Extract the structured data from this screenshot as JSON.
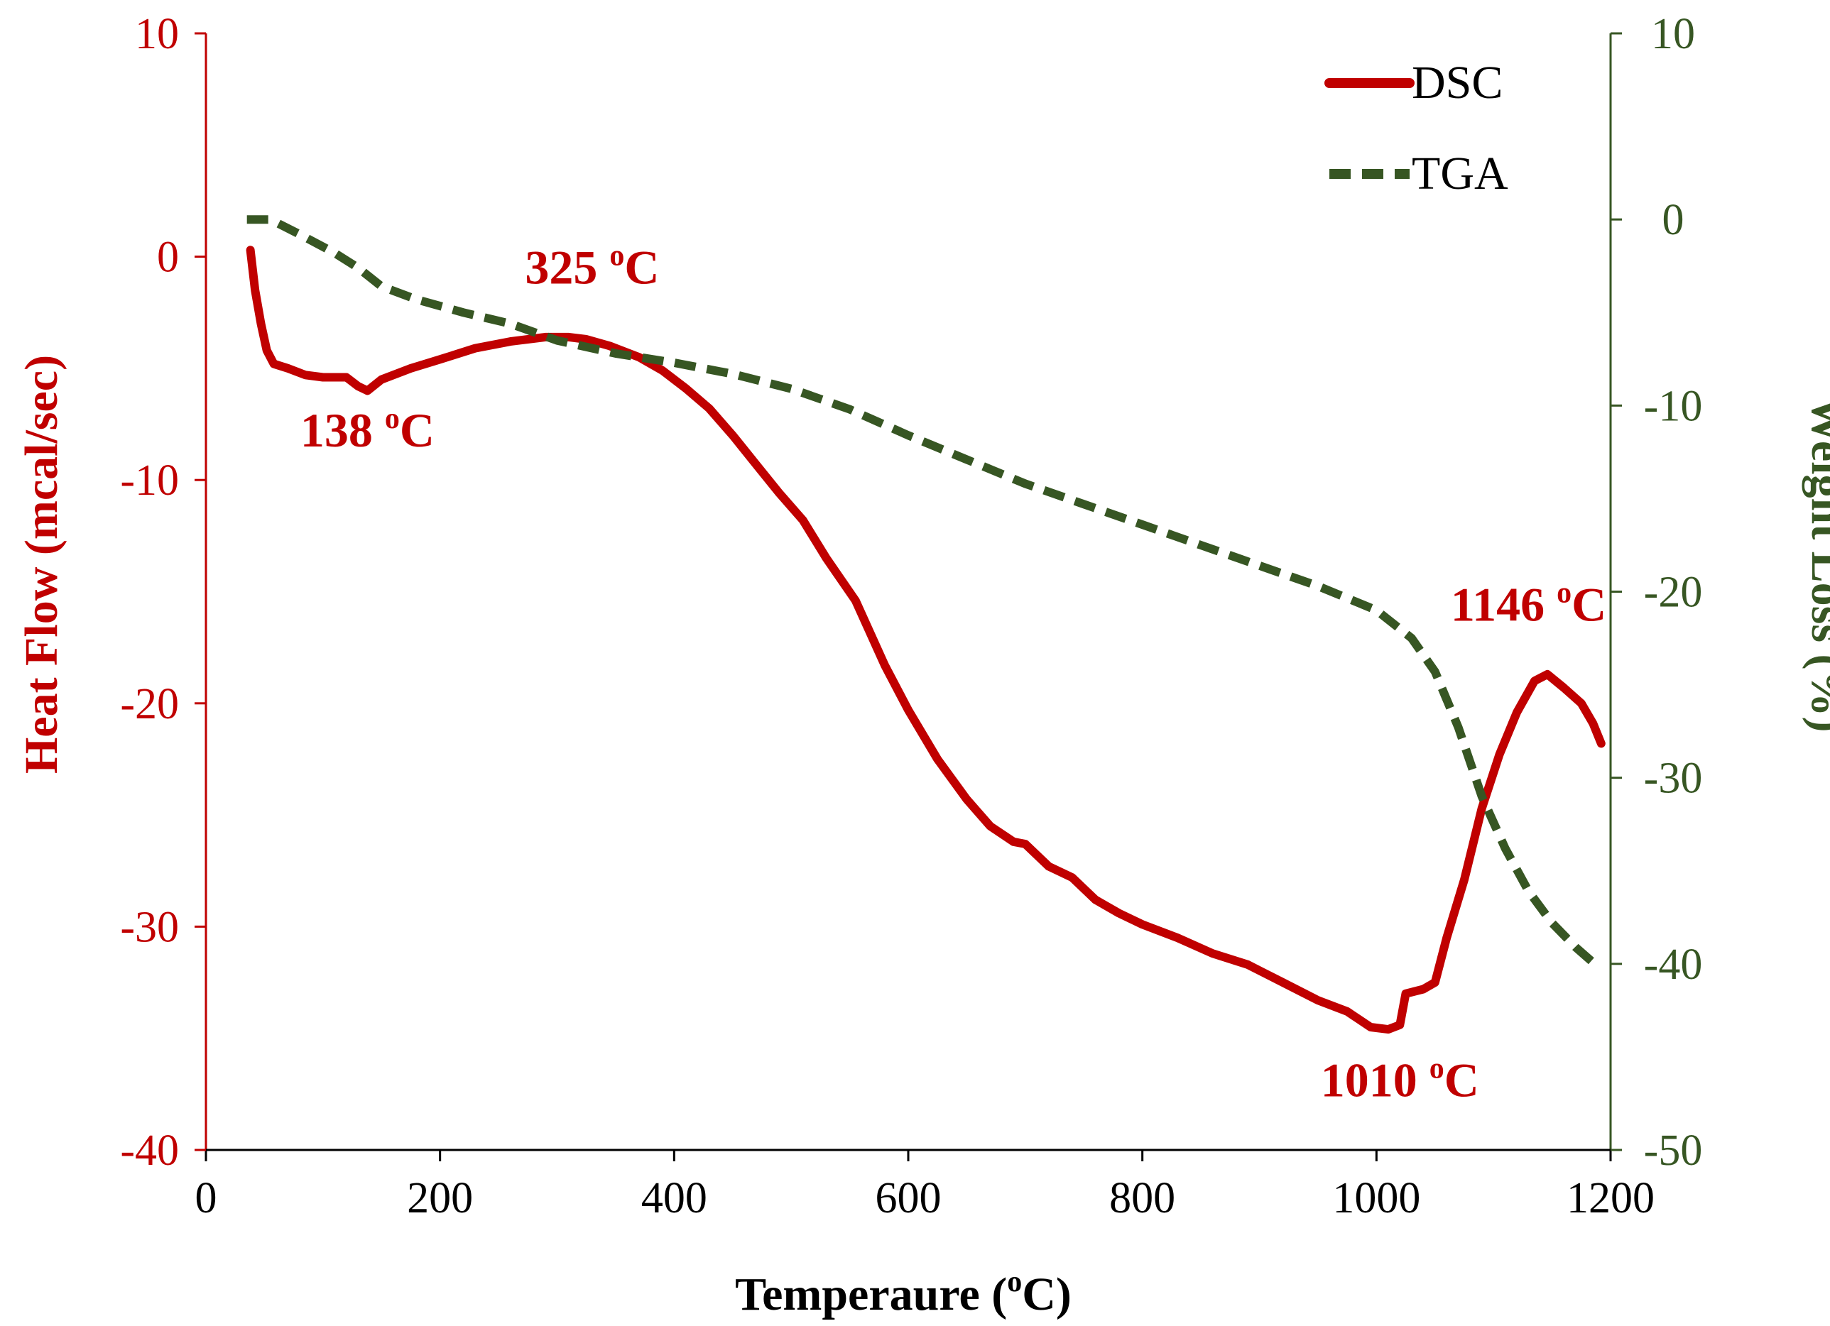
{
  "chart_data": {
    "type": "line",
    "title": "",
    "xlabel": {
      "text": "Temperaure (",
      "sup": "o",
      "tail": "C)"
    },
    "ylabel_left": "Heat Flow (mcal/sec)",
    "ylabel_right": "Weight Loss (%)",
    "xlim": [
      0,
      1200
    ],
    "ylim_left": [
      -40,
      10
    ],
    "ylim_right": [
      -50,
      10
    ],
    "x_ticks": [
      0,
      200,
      400,
      600,
      800,
      1000,
      1200
    ],
    "y_left_ticks": [
      10,
      0,
      -10,
      -20,
      -30,
      -40
    ],
    "y_right_ticks": [
      10,
      0,
      -10,
      -20,
      -30,
      -40,
      -50
    ],
    "legend_position": "top-right",
    "colors": {
      "dsc": "#c00000",
      "tga": "#375623",
      "axis": "#000000"
    },
    "series": [
      {
        "name": "DSC",
        "axis": "left",
        "style": "solid",
        "points": [
          [
            38,
            0.3
          ],
          [
            42,
            -1.5
          ],
          [
            47,
            -3.0
          ],
          [
            52,
            -4.2
          ],
          [
            58,
            -4.8
          ],
          [
            70,
            -5.0
          ],
          [
            85,
            -5.3
          ],
          [
            100,
            -5.4
          ],
          [
            120,
            -5.4
          ],
          [
            130,
            -5.8
          ],
          [
            138,
            -6.0
          ],
          [
            150,
            -5.5
          ],
          [
            175,
            -5.0
          ],
          [
            200,
            -4.6
          ],
          [
            230,
            -4.1
          ],
          [
            260,
            -3.8
          ],
          [
            290,
            -3.6
          ],
          [
            310,
            -3.6
          ],
          [
            325,
            -3.7
          ],
          [
            345,
            -4.0
          ],
          [
            370,
            -4.5
          ],
          [
            390,
            -5.1
          ],
          [
            410,
            -5.9
          ],
          [
            430,
            -6.8
          ],
          [
            450,
            -8.0
          ],
          [
            470,
            -9.3
          ],
          [
            490,
            -10.6
          ],
          [
            510,
            -11.8
          ],
          [
            530,
            -13.5
          ],
          [
            555,
            -15.4
          ],
          [
            580,
            -18.3
          ],
          [
            600,
            -20.3
          ],
          [
            625,
            -22.5
          ],
          [
            650,
            -24.3
          ],
          [
            670,
            -25.5
          ],
          [
            690,
            -26.2
          ],
          [
            700,
            -26.3
          ],
          [
            720,
            -27.3
          ],
          [
            740,
            -27.8
          ],
          [
            760,
            -28.8
          ],
          [
            780,
            -29.4
          ],
          [
            800,
            -29.9
          ],
          [
            830,
            -30.5
          ],
          [
            860,
            -31.2
          ],
          [
            890,
            -31.7
          ],
          [
            920,
            -32.5
          ],
          [
            950,
            -33.3
          ],
          [
            975,
            -33.8
          ],
          [
            995,
            -34.5
          ],
          [
            1010,
            -34.6
          ],
          [
            1020,
            -34.4
          ],
          [
            1025,
            -33.0
          ],
          [
            1040,
            -32.8
          ],
          [
            1050,
            -32.5
          ],
          [
            1060,
            -30.5
          ],
          [
            1075,
            -27.9
          ],
          [
            1090,
            -24.7
          ],
          [
            1105,
            -22.3
          ],
          [
            1120,
            -20.4
          ],
          [
            1135,
            -19.0
          ],
          [
            1146,
            -18.7
          ],
          [
            1160,
            -19.3
          ],
          [
            1175,
            -20.0
          ],
          [
            1185,
            -20.9
          ],
          [
            1192,
            -21.8
          ]
        ]
      },
      {
        "name": "TGA",
        "axis": "right",
        "style": "dashed",
        "points": [
          [
            35,
            0.0
          ],
          [
            55,
            0.0
          ],
          [
            80,
            -0.8
          ],
          [
            110,
            -1.8
          ],
          [
            130,
            -2.6
          ],
          [
            150,
            -3.6
          ],
          [
            180,
            -4.3
          ],
          [
            220,
            -5.0
          ],
          [
            260,
            -5.6
          ],
          [
            300,
            -6.5
          ],
          [
            350,
            -7.2
          ],
          [
            400,
            -7.7
          ],
          [
            450,
            -8.3
          ],
          [
            500,
            -9.1
          ],
          [
            550,
            -10.2
          ],
          [
            600,
            -11.6
          ],
          [
            650,
            -12.9
          ],
          [
            700,
            -14.2
          ],
          [
            750,
            -15.3
          ],
          [
            800,
            -16.4
          ],
          [
            850,
            -17.5
          ],
          [
            900,
            -18.6
          ],
          [
            950,
            -19.7
          ],
          [
            1000,
            -21.0
          ],
          [
            1030,
            -22.5
          ],
          [
            1050,
            -24.3
          ],
          [
            1070,
            -27.3
          ],
          [
            1090,
            -31.0
          ],
          [
            1110,
            -33.8
          ],
          [
            1130,
            -36.1
          ],
          [
            1150,
            -37.8
          ],
          [
            1170,
            -39.1
          ],
          [
            1190,
            -40.2
          ]
        ]
      }
    ],
    "annotations": [
      {
        "label": "138",
        "sup": "o",
        "unit": "C",
        "x": 138,
        "y": -8.5,
        "anchor": "middle"
      },
      {
        "label": "325",
        "sup": "o",
        "unit": "C",
        "x": 330,
        "y": -1.2,
        "anchor": "middle"
      },
      {
        "label": "1010",
        "sup": "o",
        "unit": "C",
        "x": 1020,
        "y": -37.6,
        "anchor": "middle"
      },
      {
        "label": "1146",
        "sup": "o",
        "unit": "C",
        "x": 1130,
        "y": -16.3,
        "anchor": "middle"
      }
    ]
  }
}
